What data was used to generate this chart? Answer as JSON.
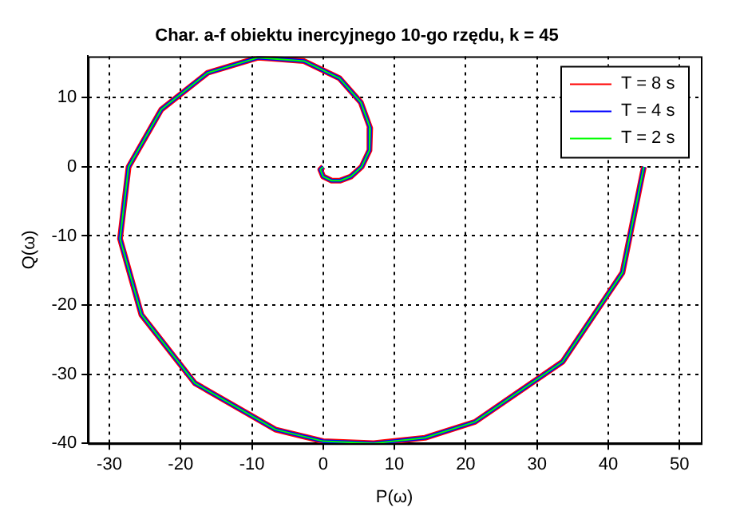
{
  "chart_data": {
    "type": "line",
    "title": "Char. a-f obiektu inercyjnego 10-go rzędu, k = 45",
    "xlabel": "P(ω)",
    "ylabel": "Q(ω)",
    "xlim": [
      -33,
      53
    ],
    "ylim": [
      -40,
      16
    ],
    "xticks": [
      -30,
      -20,
      -10,
      0,
      10,
      20,
      30,
      40,
      50
    ],
    "yticks": [
      -40,
      -30,
      -20,
      -10,
      0,
      10
    ],
    "grid": true,
    "legend": "top right",
    "series": [
      {
        "name": "T = 8 s",
        "color": "#ff0000",
        "x": [
          45,
          42,
          33.6,
          21.3,
          14.3,
          7.1,
          0,
          -6.7,
          -18,
          -25.5,
          -28.5,
          -27.3,
          -22.7,
          -16.2,
          -9.1,
          -2.7,
          2.3,
          5.3,
          6.6,
          6.5,
          5.4,
          3.9,
          2.4,
          1.2,
          0,
          -0.4,
          0
        ],
        "values": [
          0,
          -15.3,
          -28.2,
          -36.9,
          -39.2,
          -40,
          -39.7,
          -38,
          -31.3,
          -21.4,
          -10.4,
          0,
          8.3,
          13.6,
          15.8,
          15.3,
          12.8,
          9.3,
          5.6,
          2.4,
          0,
          -1.4,
          -2,
          -2,
          -1.4,
          -0.4,
          0
        ]
      },
      {
        "name": "T = 4 s",
        "color": "#0000ff",
        "x": [
          45,
          42,
          33.6,
          21.3,
          14.3,
          7.1,
          0,
          -6.7,
          -18,
          -25.5,
          -28.5,
          -27.3,
          -22.7,
          -16.2,
          -9.1,
          -2.7,
          2.3,
          5.3,
          6.6,
          6.5,
          5.4,
          3.9,
          2.4,
          1.2,
          0,
          -0.4,
          0
        ],
        "values": [
          0,
          -15.3,
          -28.2,
          -36.9,
          -39.2,
          -40,
          -39.7,
          -38,
          -31.3,
          -21.4,
          -10.4,
          0,
          8.3,
          13.6,
          15.8,
          15.3,
          12.8,
          9.3,
          5.6,
          2.4,
          0,
          -1.4,
          -2,
          -2,
          -1.4,
          -0.4,
          0
        ]
      },
      {
        "name": "T = 2 s",
        "color": "#00ff00",
        "x": [
          45,
          42,
          33.6,
          21.3,
          14.3,
          7.1,
          0,
          -6.7,
          -18,
          -25.5,
          -28.5,
          -27.3,
          -22.7,
          -16.2,
          -9.1,
          -2.7,
          2.3,
          5.3,
          6.6,
          6.5,
          5.4,
          3.9,
          2.4,
          1.2,
          0,
          -0.4,
          0
        ],
        "values": [
          0,
          -15.3,
          -28.2,
          -36.9,
          -39.2,
          -40,
          -39.7,
          -38,
          -31.3,
          -21.4,
          -10.4,
          0,
          8.3,
          13.6,
          15.8,
          15.3,
          12.8,
          9.3,
          5.6,
          2.4,
          0,
          -1.4,
          -2,
          -2,
          -1.4,
          -0.4,
          0
        ]
      }
    ]
  }
}
